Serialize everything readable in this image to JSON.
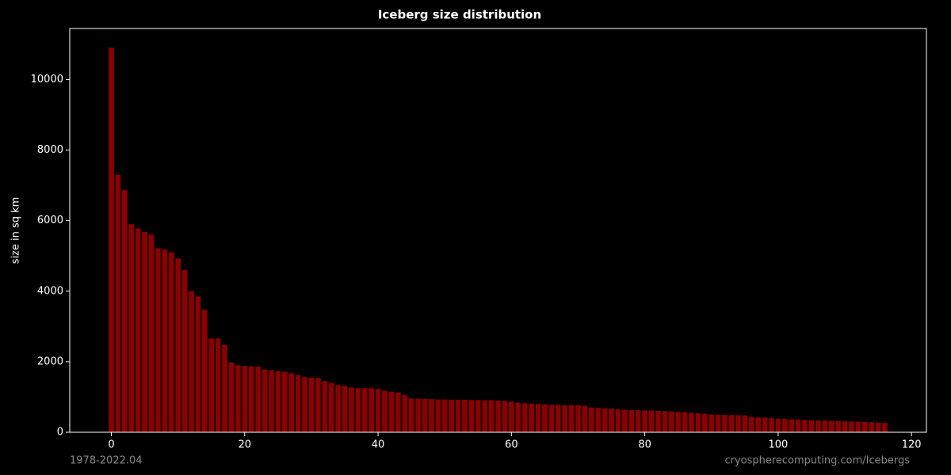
{
  "chart_data": {
    "type": "bar",
    "title": "Iceberg size distribution",
    "ylabel": "size in sq km",
    "footer_left": "1978-2022.04",
    "footer_right": "cryospherecomputing.com/Icebergs",
    "color": "#8b0000",
    "x": [
      0,
      1,
      2,
      3,
      4,
      5,
      6,
      7,
      8,
      9,
      10,
      11,
      12,
      13,
      14,
      15,
      16,
      17,
      18,
      19,
      20,
      21,
      22,
      23,
      24,
      25,
      26,
      27,
      28,
      29,
      30,
      31,
      32,
      33,
      34,
      35,
      36,
      37,
      38,
      39,
      40,
      41,
      42,
      43,
      44,
      45,
      46,
      47,
      48,
      49,
      50,
      51,
      52,
      53,
      54,
      55,
      56,
      57,
      58,
      59,
      60,
      61,
      62,
      63,
      64,
      65,
      66,
      67,
      68,
      69,
      70,
      71,
      72,
      73,
      74,
      75,
      76,
      77,
      78,
      79,
      80,
      81,
      82,
      83,
      84,
      85,
      86,
      87,
      88,
      89,
      90,
      91,
      92,
      93,
      94,
      95,
      96,
      97,
      98,
      99,
      100,
      101,
      102,
      103,
      104,
      105,
      106,
      107,
      108,
      109,
      110,
      111,
      112,
      113,
      114,
      115,
      116
    ],
    "values": [
      10900,
      7300,
      6870,
      5900,
      5780,
      5680,
      5600,
      5220,
      5180,
      5100,
      4930,
      4600,
      4000,
      3850,
      3470,
      2660,
      2660,
      2470,
      1980,
      1900,
      1880,
      1870,
      1860,
      1780,
      1760,
      1730,
      1710,
      1670,
      1620,
      1560,
      1550,
      1540,
      1450,
      1400,
      1340,
      1320,
      1270,
      1250,
      1250,
      1250,
      1230,
      1180,
      1150,
      1130,
      1050,
      960,
      950,
      950,
      940,
      930,
      930,
      925,
      920,
      920,
      915,
      915,
      910,
      910,
      900,
      890,
      870,
      830,
      820,
      815,
      800,
      790,
      780,
      775,
      770,
      770,
      765,
      750,
      700,
      690,
      680,
      670,
      650,
      640,
      630,
      625,
      620,
      615,
      610,
      600,
      590,
      575,
      565,
      550,
      540,
      520,
      500,
      495,
      490,
      490,
      485,
      480,
      430,
      420,
      415,
      400,
      380,
      375,
      365,
      360,
      350,
      340,
      335,
      330,
      325,
      320,
      310,
      305,
      300,
      290,
      285,
      275,
      265
    ],
    "xlim": [
      -6.24,
      122.24
    ],
    "xticks": [
      0,
      20,
      40,
      60,
      80,
      100,
      120
    ],
    "ylim": [
      0,
      11445
    ],
    "yticks": [
      0,
      2000,
      4000,
      6000,
      8000,
      10000
    ]
  }
}
